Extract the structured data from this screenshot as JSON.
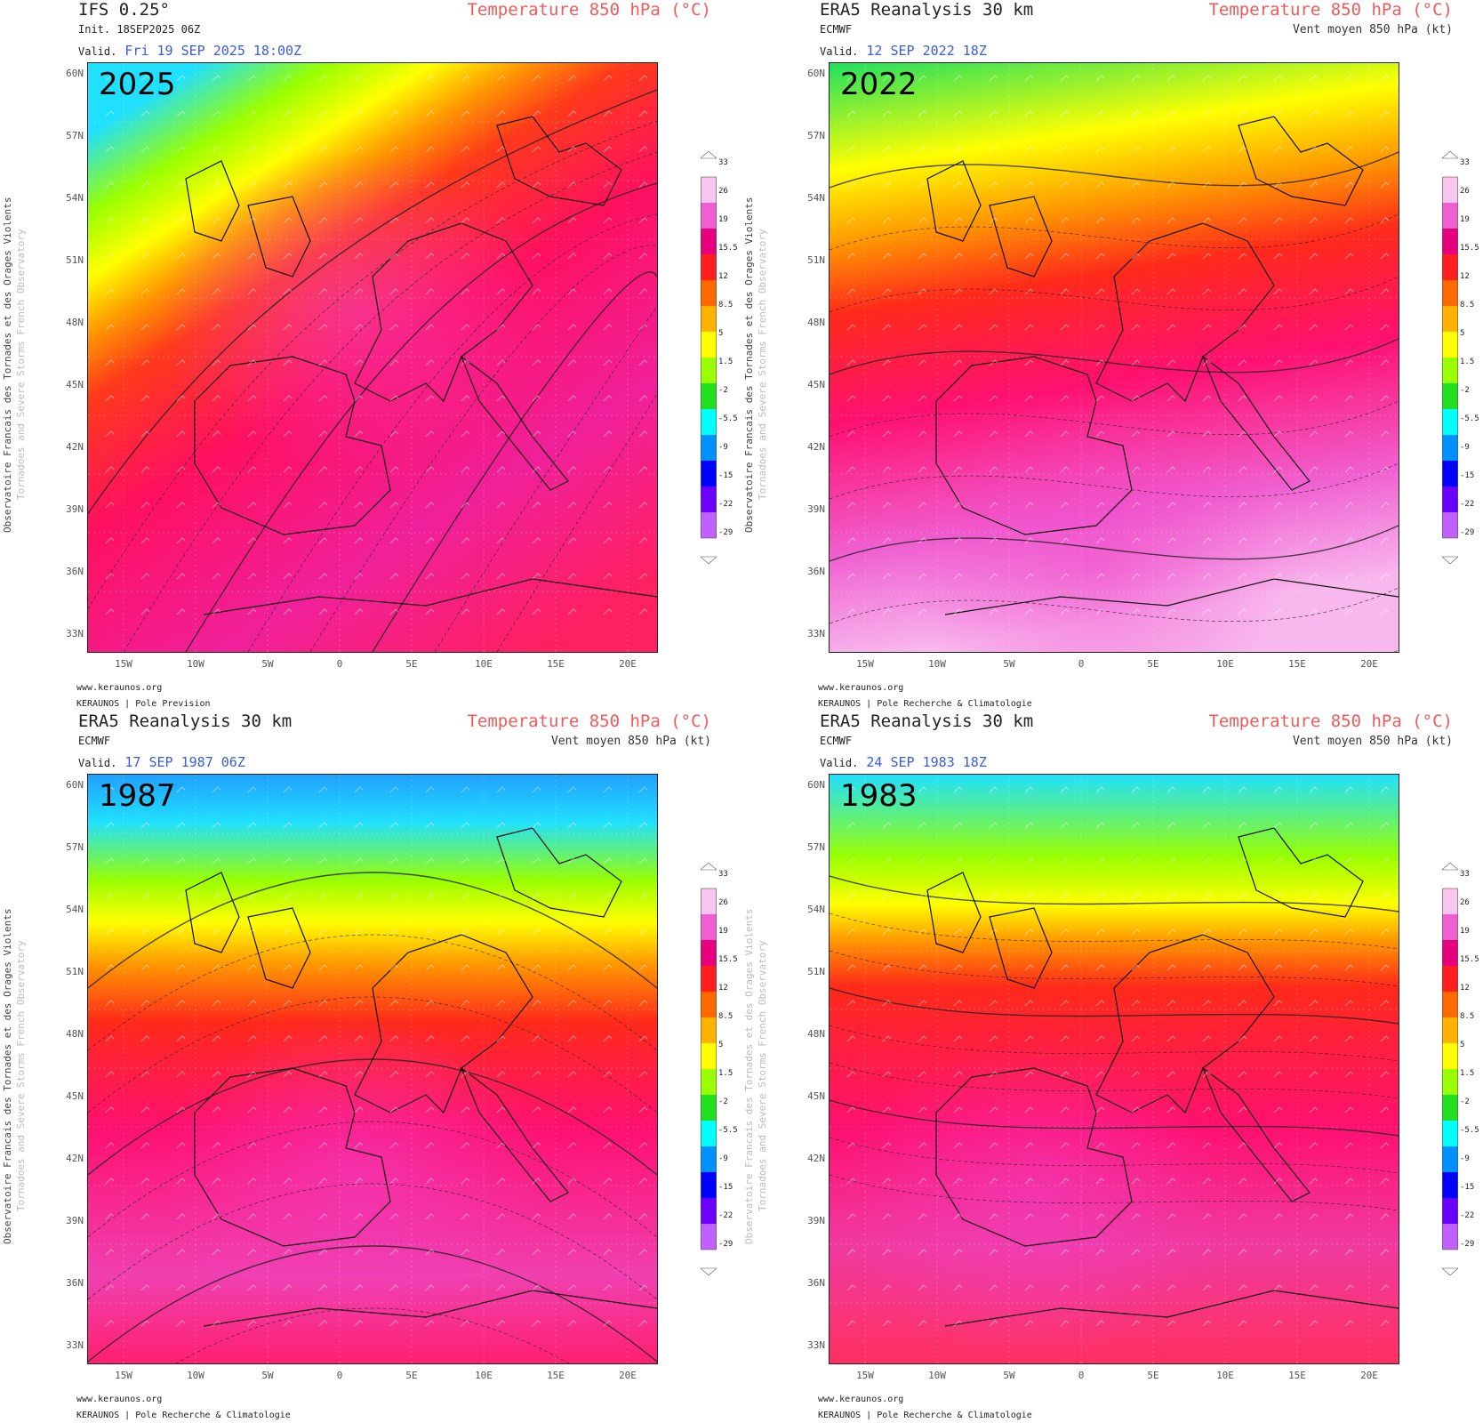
{
  "colorbar": {
    "labels": [
      "33",
      "26",
      "19",
      "15.5",
      "12",
      "8.5",
      "5",
      "1.5",
      "-2",
      "-5.5",
      "-9",
      "-15",
      "-22",
      "-29"
    ],
    "colors": [
      "#ffffff",
      "#f7c6ef",
      "#f05fd2",
      "#e6007e",
      "#ff1f1f",
      "#ff6a00",
      "#ffb300",
      "#ffff00",
      "#9aff00",
      "#20e020",
      "#00ffff",
      "#0090ff",
      "#0000ff",
      "#6a00ff",
      "#c060ff",
      "#ffffff"
    ]
  },
  "lat_labels": [
    "60N",
    "57N",
    "54N",
    "51N",
    "48N",
    "45N",
    "42N",
    "39N",
    "36N",
    "33N"
  ],
  "lon_labels": [
    "15W",
    "10W",
    "5W",
    "0",
    "5E",
    "10E",
    "15E",
    "20E"
  ],
  "footer": {
    "site": "www.keraunos.org"
  },
  "side_text": {
    "main": "Observatoire Francais des Tornades et des Orages Violents",
    "sub": "Tornadoes and Severe Storms French Observatory"
  },
  "panels": [
    {
      "model": "IFS 0.25°",
      "field": "Temperature 850 hPa (°C)",
      "sub_left": "Init.   18SEP2025 06Z",
      "sub_right": "",
      "valid_label": "Valid.",
      "valid_value": "Fri 19 SEP 2025 18:00Z",
      "year": "2025",
      "footer_org": "KERAUNOS | Pole Prevision",
      "pattern": "sw"
    },
    {
      "model": "ERA5 Reanalysis 30 km",
      "field": "Temperature 850 hPa (°C)",
      "sub_left": "ECMWF",
      "sub_right": "Vent moyen 850 hPa (kt)",
      "valid_label": "Valid.",
      "valid_value": "12 SEP 2022 18Z",
      "year": "2022",
      "footer_org": "KERAUNOS | Pole Recherche & Climatologie",
      "pattern": "south"
    },
    {
      "model": "ERA5 Reanalysis 30 km",
      "field": "Temperature 850 hPa (°C)",
      "sub_left": "ECMWF",
      "sub_right": "Vent moyen 850 hPa (kt)",
      "valid_label": "Valid.",
      "valid_value": "17 SEP 1987 06Z",
      "year": "1987",
      "footer_org": "KERAUNOS | Pole Recherche & Climatologie",
      "pattern": "dome"
    },
    {
      "model": "ERA5 Reanalysis 30 km",
      "field": "Temperature 850 hPa (°C)",
      "sub_left": "ECMWF",
      "sub_right": "Vent moyen 850 hPa (kt)",
      "valid_label": "Valid.",
      "valid_value": "24 SEP 1983 18Z",
      "year": "1983",
      "footer_org": "KERAUNOS | Pole Recherche & Climatologie",
      "pattern": "band"
    }
  ]
}
